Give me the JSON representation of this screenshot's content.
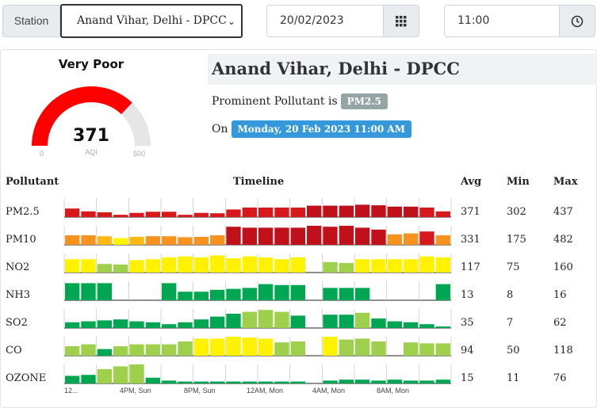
{
  "controls": {
    "station_label": "Station",
    "station_selected": "Anand Vihar, Delhi - DPCC",
    "date_value": "20/02/2023",
    "time_value": "11:00"
  },
  "gauge": {
    "category": "Very Poor",
    "aqi": 371,
    "aqi_text": "371",
    "label": "AQI",
    "min": "0",
    "max": "500",
    "color": "#ff0000"
  },
  "station": {
    "name": "Anand Vihar, Delhi - DPCC",
    "prominent_prefix": "Prominent Pollutant is",
    "prominent_pollutant": "PM2.5",
    "on_prefix": "On",
    "timestamp": "Monday, 20 Feb 2023 11:00 AM"
  },
  "table": {
    "headers": {
      "pollutant": "Pollutant",
      "timeline": "Timeline",
      "avg": "Avg",
      "min": "Min",
      "max": "Max"
    },
    "x_labels": [
      "12...",
      "4PM, Sun",
      "8PM, Sun",
      "12AM, Mon",
      "4AM, Mon",
      "8AM, Mon"
    ],
    "rows": [
      {
        "name": "PM2.5",
        "avg": "371",
        "min": "302",
        "max": "437",
        "bars": [
          {
            "v": 0.45,
            "c": "#d7191c"
          },
          {
            "v": 0.3,
            "c": "#d7191c"
          },
          {
            "v": 0.25,
            "c": "#d7191c"
          },
          {
            "v": 0.12,
            "c": "#d7191c"
          },
          {
            "v": 0.22,
            "c": "#d7191c"
          },
          {
            "v": 0.28,
            "c": "#d7191c"
          },
          {
            "v": 0.28,
            "c": "#d7191c"
          },
          {
            "v": 0.12,
            "c": "#d7191c"
          },
          {
            "v": 0.22,
            "c": "#d7191c"
          },
          {
            "v": 0.2,
            "c": "#d7191c"
          },
          {
            "v": 0.4,
            "c": "#d7191c"
          },
          {
            "v": 0.5,
            "c": "#d7191c"
          },
          {
            "v": 0.5,
            "c": "#d7191c"
          },
          {
            "v": 0.5,
            "c": "#d7191c"
          },
          {
            "v": 0.5,
            "c": "#d7191c"
          },
          {
            "v": 0.6,
            "c": "#c0101a"
          },
          {
            "v": 0.6,
            "c": "#c0101a"
          },
          {
            "v": 0.6,
            "c": "#c0101a"
          },
          {
            "v": 0.65,
            "c": "#c0101a"
          },
          {
            "v": 0.62,
            "c": "#c0101a"
          },
          {
            "v": 0.55,
            "c": "#c0101a"
          },
          {
            "v": 0.55,
            "c": "#c0101a"
          },
          {
            "v": 0.5,
            "c": "#d7191c"
          },
          {
            "v": 0.3,
            "c": "#d7191c"
          }
        ]
      },
      {
        "name": "PM10",
        "avg": "331",
        "min": "175",
        "max": "482",
        "bars": [
          {
            "v": 0.5,
            "c": "#f6921e"
          },
          {
            "v": 0.5,
            "c": "#f6921e"
          },
          {
            "v": 0.45,
            "c": "#fdb913"
          },
          {
            "v": 0.35,
            "c": "#fff200"
          },
          {
            "v": 0.42,
            "c": "#fdb913"
          },
          {
            "v": 0.45,
            "c": "#f6921e"
          },
          {
            "v": 0.45,
            "c": "#f6921e"
          },
          {
            "v": 0.4,
            "c": "#f6921e"
          },
          {
            "v": 0.42,
            "c": "#f6921e"
          },
          {
            "v": 0.5,
            "c": "#f6921e"
          },
          {
            "v": 0.95,
            "c": "#c0101a"
          },
          {
            "v": 0.9,
            "c": "#c0101a"
          },
          {
            "v": 0.9,
            "c": "#c0101a"
          },
          {
            "v": 0.9,
            "c": "#c0101a"
          },
          {
            "v": 0.9,
            "c": "#c0101a"
          },
          {
            "v": 1.0,
            "c": "#c0101a"
          },
          {
            "v": 0.95,
            "c": "#c0101a"
          },
          {
            "v": 1.0,
            "c": "#c0101a"
          },
          {
            "v": 0.9,
            "c": "#c0101a"
          },
          {
            "v": 0.8,
            "c": "#c0101a"
          },
          {
            "v": 0.55,
            "c": "#f6921e"
          },
          {
            "v": 0.6,
            "c": "#f6921e"
          },
          {
            "v": 0.7,
            "c": "#d7191c"
          },
          {
            "v": 0.5,
            "c": "#f6921e"
          }
        ]
      },
      {
        "name": "NO2",
        "avg": "117",
        "min": "75",
        "max": "160",
        "bars": [
          {
            "v": 0.7,
            "c": "#fff200"
          },
          {
            "v": 0.7,
            "c": "#fff200"
          },
          {
            "v": 0.45,
            "c": "#9ed04c"
          },
          {
            "v": 0.42,
            "c": "#9ed04c"
          },
          {
            "v": 0.65,
            "c": "#fff200"
          },
          {
            "v": 0.7,
            "c": "#fff200"
          },
          {
            "v": 0.8,
            "c": "#fff200"
          },
          {
            "v": 0.85,
            "c": "#fff200"
          },
          {
            "v": 0.8,
            "c": "#fff200"
          },
          {
            "v": 0.9,
            "c": "#fff200"
          },
          {
            "v": 0.75,
            "c": "#fff200"
          },
          {
            "v": 0.85,
            "c": "#fff200"
          },
          {
            "v": 0.8,
            "c": "#fff200"
          },
          {
            "v": 0.7,
            "c": "#fff200"
          },
          {
            "v": 0.8,
            "c": "#fff200"
          },
          {
            "v": 0,
            "c": "#fff200"
          },
          {
            "v": 0.55,
            "c": "#9ed04c"
          },
          {
            "v": 0.5,
            "c": "#9ed04c"
          },
          {
            "v": 0.7,
            "c": "#fff200"
          },
          {
            "v": 0.7,
            "c": "#fff200"
          },
          {
            "v": 0.7,
            "c": "#fff200"
          },
          {
            "v": 0.7,
            "c": "#fff200"
          },
          {
            "v": 0.85,
            "c": "#fff200"
          },
          {
            "v": 0.8,
            "c": "#fff200"
          }
        ]
      },
      {
        "name": "NH3",
        "avg": "13",
        "min": "8",
        "max": "16",
        "bars": [
          {
            "v": 0.9,
            "c": "#00a651"
          },
          {
            "v": 0.9,
            "c": "#00a651"
          },
          {
            "v": 0.9,
            "c": "#00a651"
          },
          {
            "v": 0,
            "c": "#00a651"
          },
          {
            "v": 0,
            "c": "#00a651"
          },
          {
            "v": 0,
            "c": "#00a651"
          },
          {
            "v": 0.9,
            "c": "#00a651"
          },
          {
            "v": 0.45,
            "c": "#00a651"
          },
          {
            "v": 0.45,
            "c": "#00a651"
          },
          {
            "v": 0.55,
            "c": "#00a651"
          },
          {
            "v": 0.6,
            "c": "#00a651"
          },
          {
            "v": 0.65,
            "c": "#00a651"
          },
          {
            "v": 0.85,
            "c": "#00a651"
          },
          {
            "v": 0.8,
            "c": "#00a651"
          },
          {
            "v": 0.8,
            "c": "#00a651"
          },
          {
            "v": 0,
            "c": "#00a651"
          },
          {
            "v": 0.65,
            "c": "#00a651"
          },
          {
            "v": 0.65,
            "c": "#00a651"
          },
          {
            "v": 0.65,
            "c": "#00a651"
          },
          {
            "v": 0,
            "c": "#00a651"
          },
          {
            "v": 0,
            "c": "#00a651"
          },
          {
            "v": 0,
            "c": "#00a651"
          },
          {
            "v": 0,
            "c": "#00a651"
          },
          {
            "v": 0.85,
            "c": "#00a651"
          }
        ]
      },
      {
        "name": "SO2",
        "avg": "35",
        "min": "7",
        "max": "62",
        "bars": [
          {
            "v": 0.3,
            "c": "#00a651"
          },
          {
            "v": 0.35,
            "c": "#00a651"
          },
          {
            "v": 0.4,
            "c": "#00a651"
          },
          {
            "v": 0.45,
            "c": "#00a651"
          },
          {
            "v": 0.35,
            "c": "#00a651"
          },
          {
            "v": 0.3,
            "c": "#00a651"
          },
          {
            "v": 0.2,
            "c": "#00a651"
          },
          {
            "v": 0.3,
            "c": "#00a651"
          },
          {
            "v": 0.45,
            "c": "#00a651"
          },
          {
            "v": 0.6,
            "c": "#00a651"
          },
          {
            "v": 0.75,
            "c": "#00a651"
          },
          {
            "v": 0.85,
            "c": "#9ed04c"
          },
          {
            "v": 0.95,
            "c": "#9ed04c"
          },
          {
            "v": 0.85,
            "c": "#9ed04c"
          },
          {
            "v": 0.65,
            "c": "#00a651"
          },
          {
            "v": 0,
            "c": "#00a651"
          },
          {
            "v": 0.7,
            "c": "#00a651"
          },
          {
            "v": 0.7,
            "c": "#00a651"
          },
          {
            "v": 0.8,
            "c": "#9ed04c"
          },
          {
            "v": 0.5,
            "c": "#00a651"
          },
          {
            "v": 0.35,
            "c": "#00a651"
          },
          {
            "v": 0.3,
            "c": "#00a651"
          },
          {
            "v": 0.2,
            "c": "#00a651"
          },
          {
            "v": 0.08,
            "c": "#00a651"
          }
        ]
      },
      {
        "name": "CO",
        "avg": "94",
        "min": "50",
        "max": "118",
        "bars": [
          {
            "v": 0.5,
            "c": "#9ed04c"
          },
          {
            "v": 0.6,
            "c": "#9ed04c"
          },
          {
            "v": 0.35,
            "c": "#00a651"
          },
          {
            "v": 0.5,
            "c": "#9ed04c"
          },
          {
            "v": 0.6,
            "c": "#9ed04c"
          },
          {
            "v": 0.6,
            "c": "#9ed04c"
          },
          {
            "v": 0.6,
            "c": "#9ed04c"
          },
          {
            "v": 0.75,
            "c": "#9ed04c"
          },
          {
            "v": 0.9,
            "c": "#fff200"
          },
          {
            "v": 0.9,
            "c": "#fff200"
          },
          {
            "v": 1.0,
            "c": "#fff200"
          },
          {
            "v": 0.95,
            "c": "#fff200"
          },
          {
            "v": 0.9,
            "c": "#fff200"
          },
          {
            "v": 0.7,
            "c": "#9ed04c"
          },
          {
            "v": 0.75,
            "c": "#9ed04c"
          },
          {
            "v": 0,
            "c": "#9ed04c"
          },
          {
            "v": 1.0,
            "c": "#fff200"
          },
          {
            "v": 0.85,
            "c": "#9ed04c"
          },
          {
            "v": 0.9,
            "c": "#9ed04c"
          },
          {
            "v": 0.75,
            "c": "#9ed04c"
          },
          {
            "v": 0,
            "c": "#9ed04c"
          },
          {
            "v": 0.7,
            "c": "#9ed04c"
          },
          {
            "v": 0.65,
            "c": "#9ed04c"
          },
          {
            "v": 0.65,
            "c": "#9ed04c"
          }
        ]
      },
      {
        "name": "OZONE",
        "avg": "15",
        "min": "11",
        "max": "76",
        "bars": [
          {
            "v": 0.4,
            "c": "#00a651"
          },
          {
            "v": 0.45,
            "c": "#00a651"
          },
          {
            "v": 0.75,
            "c": "#9ed04c"
          },
          {
            "v": 0.9,
            "c": "#9ed04c"
          },
          {
            "v": 1.0,
            "c": "#9ed04c"
          },
          {
            "v": 0.3,
            "c": "#00a651"
          },
          {
            "v": 0.15,
            "c": "#00a651"
          },
          {
            "v": 0.1,
            "c": "#00a651"
          },
          {
            "v": 0.1,
            "c": "#00a651"
          },
          {
            "v": 0.1,
            "c": "#00a651"
          },
          {
            "v": 0.1,
            "c": "#00a651"
          },
          {
            "v": 0.1,
            "c": "#00a651"
          },
          {
            "v": 0.1,
            "c": "#00a651"
          },
          {
            "v": 0.1,
            "c": "#00a651"
          },
          {
            "v": 0.1,
            "c": "#00a651"
          },
          {
            "v": 0,
            "c": "#00a651"
          },
          {
            "v": 0.15,
            "c": "#00a651"
          },
          {
            "v": 0.2,
            "c": "#00a651"
          },
          {
            "v": 0.2,
            "c": "#00a651"
          },
          {
            "v": 0.15,
            "c": "#00a651"
          },
          {
            "v": 0.2,
            "c": "#00a651"
          },
          {
            "v": 0.15,
            "c": "#00a651"
          },
          {
            "v": 0.15,
            "c": "#00a651"
          },
          {
            "v": 0.2,
            "c": "#00a651"
          }
        ]
      }
    ]
  }
}
